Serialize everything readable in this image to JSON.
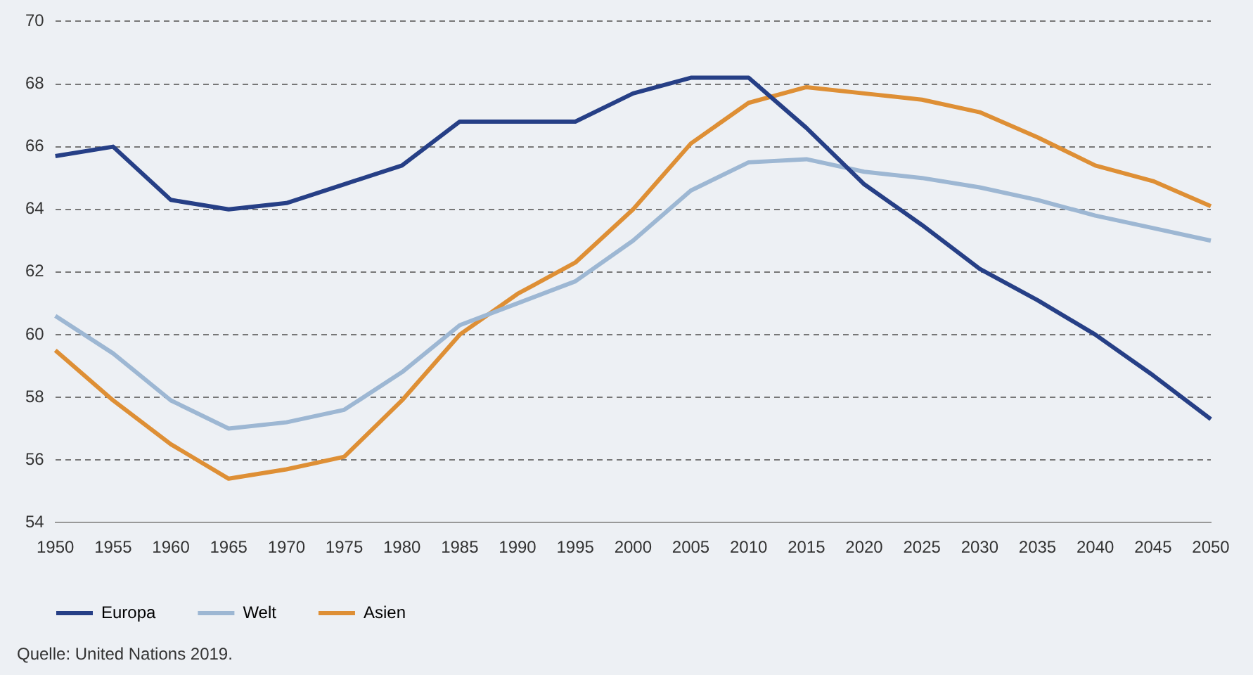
{
  "chart_data": {
    "type": "line",
    "categories": [
      "1950",
      "1955",
      "1960",
      "1965",
      "1970",
      "1975",
      "1980",
      "1985",
      "1990",
      "1995",
      "2000",
      "2005",
      "2010",
      "2015",
      "2020",
      "2025",
      "2030",
      "2035",
      "2040",
      "2045",
      "2050"
    ],
    "series": [
      {
        "name": "Europa",
        "color": "#263f86",
        "values": [
          65.7,
          66.0,
          64.3,
          64.0,
          64.2,
          64.8,
          65.4,
          66.8,
          66.8,
          66.8,
          67.7,
          68.2,
          68.2,
          66.6,
          64.8,
          63.5,
          62.1,
          61.1,
          60.0,
          58.7,
          57.3
        ]
      },
      {
        "name": "Welt",
        "color": "#9db7d3",
        "values": [
          60.6,
          59.4,
          57.9,
          57.0,
          57.2,
          57.6,
          58.8,
          60.3,
          61.0,
          61.7,
          63.0,
          64.6,
          65.5,
          65.6,
          65.2,
          65.0,
          64.7,
          64.3,
          63.8,
          63.4,
          63.0
        ]
      },
      {
        "name": "Asien",
        "color": "#de8f35",
        "values": [
          59.5,
          57.9,
          56.5,
          55.4,
          55.7,
          56.1,
          57.9,
          60.0,
          61.3,
          62.3,
          64.0,
          66.1,
          67.4,
          67.9,
          67.7,
          67.5,
          67.1,
          66.3,
          65.4,
          64.9,
          64.1
        ]
      }
    ],
    "ylim": [
      54,
      70
    ],
    "yticks": [
      54,
      56,
      58,
      60,
      62,
      64,
      66,
      68,
      70
    ],
    "grid": "y",
    "legend": "bottom left",
    "marker": "none",
    "line_style": "solid",
    "annotations": [
      "Quelle: United Nations 2019."
    ]
  }
}
